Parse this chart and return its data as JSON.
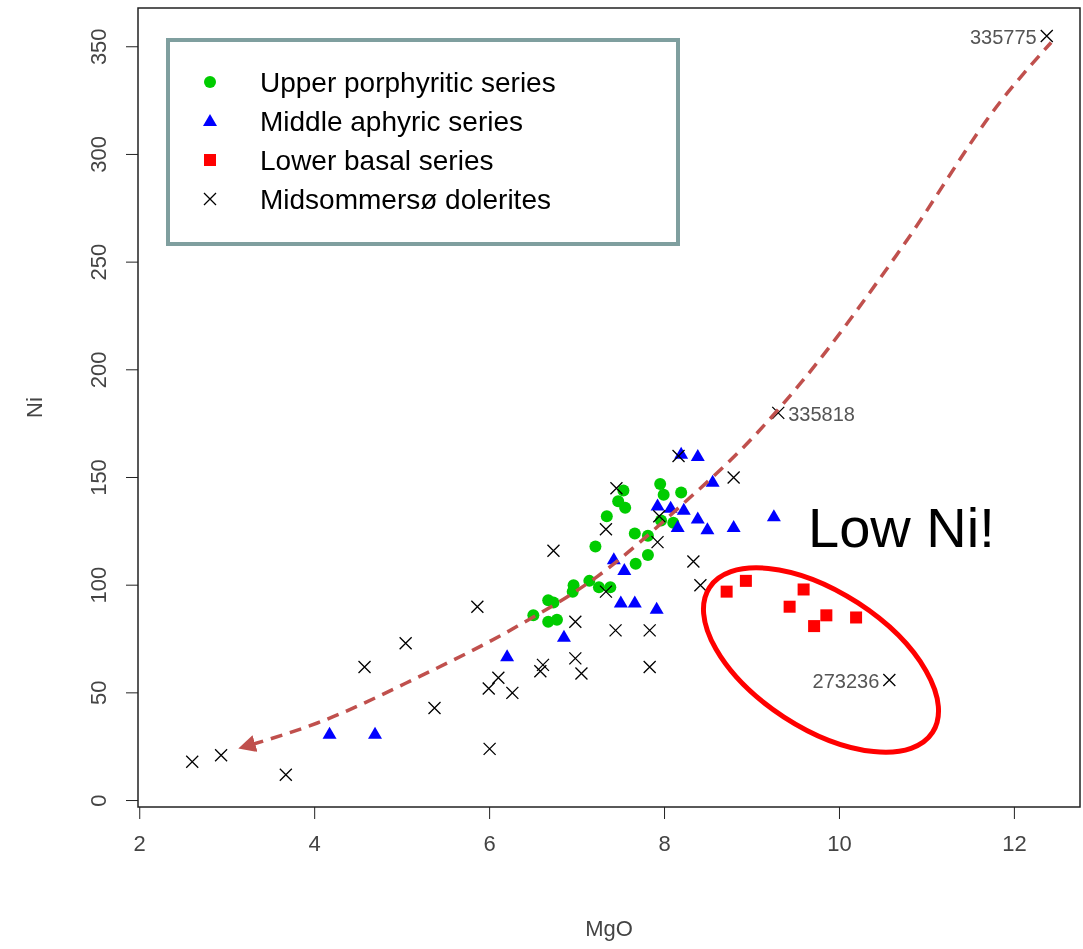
{
  "chart_data": {
    "type": "scatter",
    "xlabel": "MgO",
    "ylabel": "Ni",
    "xlim": [
      1.98,
      12.75
    ],
    "ylim": [
      -3,
      368
    ],
    "xticks": [
      2,
      4,
      6,
      8,
      10,
      12
    ],
    "yticks": [
      0,
      50,
      100,
      150,
      200,
      250,
      300,
      350
    ],
    "grid": false,
    "legend": "top left",
    "series": [
      {
        "name": "Upper porphyritic series",
        "color": "#00cc00",
        "marker": "circle",
        "x": [
          7.95,
          7.99,
          8.19,
          7.53,
          7.47,
          7.55,
          7.34,
          7.21,
          7.66,
          7.81,
          7.96,
          8.1,
          7.81,
          7.67,
          7.14,
          7.25,
          7.38,
          6.96,
          6.95,
          6.67,
          6.73,
          6.5,
          6.67,
          6.77
        ],
        "values": [
          147,
          142,
          143,
          144,
          139,
          136,
          132,
          118,
          124,
          123,
          130,
          129,
          114,
          110,
          102,
          99,
          99,
          100,
          97,
          93,
          92,
          86,
          83,
          84
        ]
      },
      {
        "name": "Middle aphyric series",
        "color": "#0000ff",
        "marker": "triangle",
        "x": [
          4.17,
          4.69,
          6.2,
          6.85,
          8.19,
          8.38,
          8.55,
          7.92,
          8.07,
          8.22,
          8.38,
          8.15,
          8.49,
          8.79,
          9.25,
          7.42,
          7.54,
          7.5,
          7.66,
          7.91
        ],
        "values": [
          31,
          31,
          67,
          76,
          161,
          160,
          148,
          137,
          136,
          135,
          131,
          127,
          126,
          127,
          132,
          112,
          107,
          92,
          92,
          89
        ]
      },
      {
        "name": "Lower basal series",
        "color": "#ff0000",
        "marker": "square",
        "x": [
          8.71,
          8.93,
          9.59,
          9.43,
          9.85,
          9.71,
          10.19
        ],
        "values": [
          97,
          102,
          98,
          90,
          86,
          81,
          85
        ]
      },
      {
        "name": "Midsommersø dolerites",
        "color": "#000000",
        "marker": "cross",
        "x": [
          2.6,
          2.93,
          3.67,
          4.57,
          5.04,
          5.37,
          5.86,
          5.99,
          6.0,
          6.1,
          6.26,
          6.58,
          6.61,
          6.73,
          6.98,
          6.98,
          7.05,
          7.33,
          7.33,
          7.45,
          7.44,
          7.83,
          7.83,
          7.92,
          7.94,
          8.16,
          8.79,
          8.33,
          8.41,
          9.3,
          10.57,
          12.37
        ],
        "values": [
          18,
          21,
          12,
          62,
          73,
          43,
          90,
          52,
          24,
          57,
          50,
          60,
          63,
          116,
          83,
          66,
          59,
          97,
          126,
          145,
          79,
          79,
          62,
          120,
          132,
          160,
          150,
          111,
          100,
          180,
          56,
          355
        ]
      },
      {
        "type": "line",
        "color": "#c0504d",
        "line_style": "dashed",
        "marker": "none",
        "x": [
          3.28,
          4.03,
          5.17,
          6.32,
          7.23,
          8.19,
          9.02,
          9.56,
          10.7,
          11.85,
          12.42
        ],
        "values": [
          26,
          36,
          57,
          81,
          104,
          137,
          169,
          194,
          256,
          325,
          352
        ]
      }
    ],
    "annotations": [
      {
        "text": "335775",
        "x": 12.37,
        "y": 355
      },
      {
        "text": "335818",
        "x": 9.3,
        "y": 180
      },
      {
        "text": "273236",
        "x": 10.57,
        "y": 56
      },
      "Low Ni!"
    ]
  }
}
